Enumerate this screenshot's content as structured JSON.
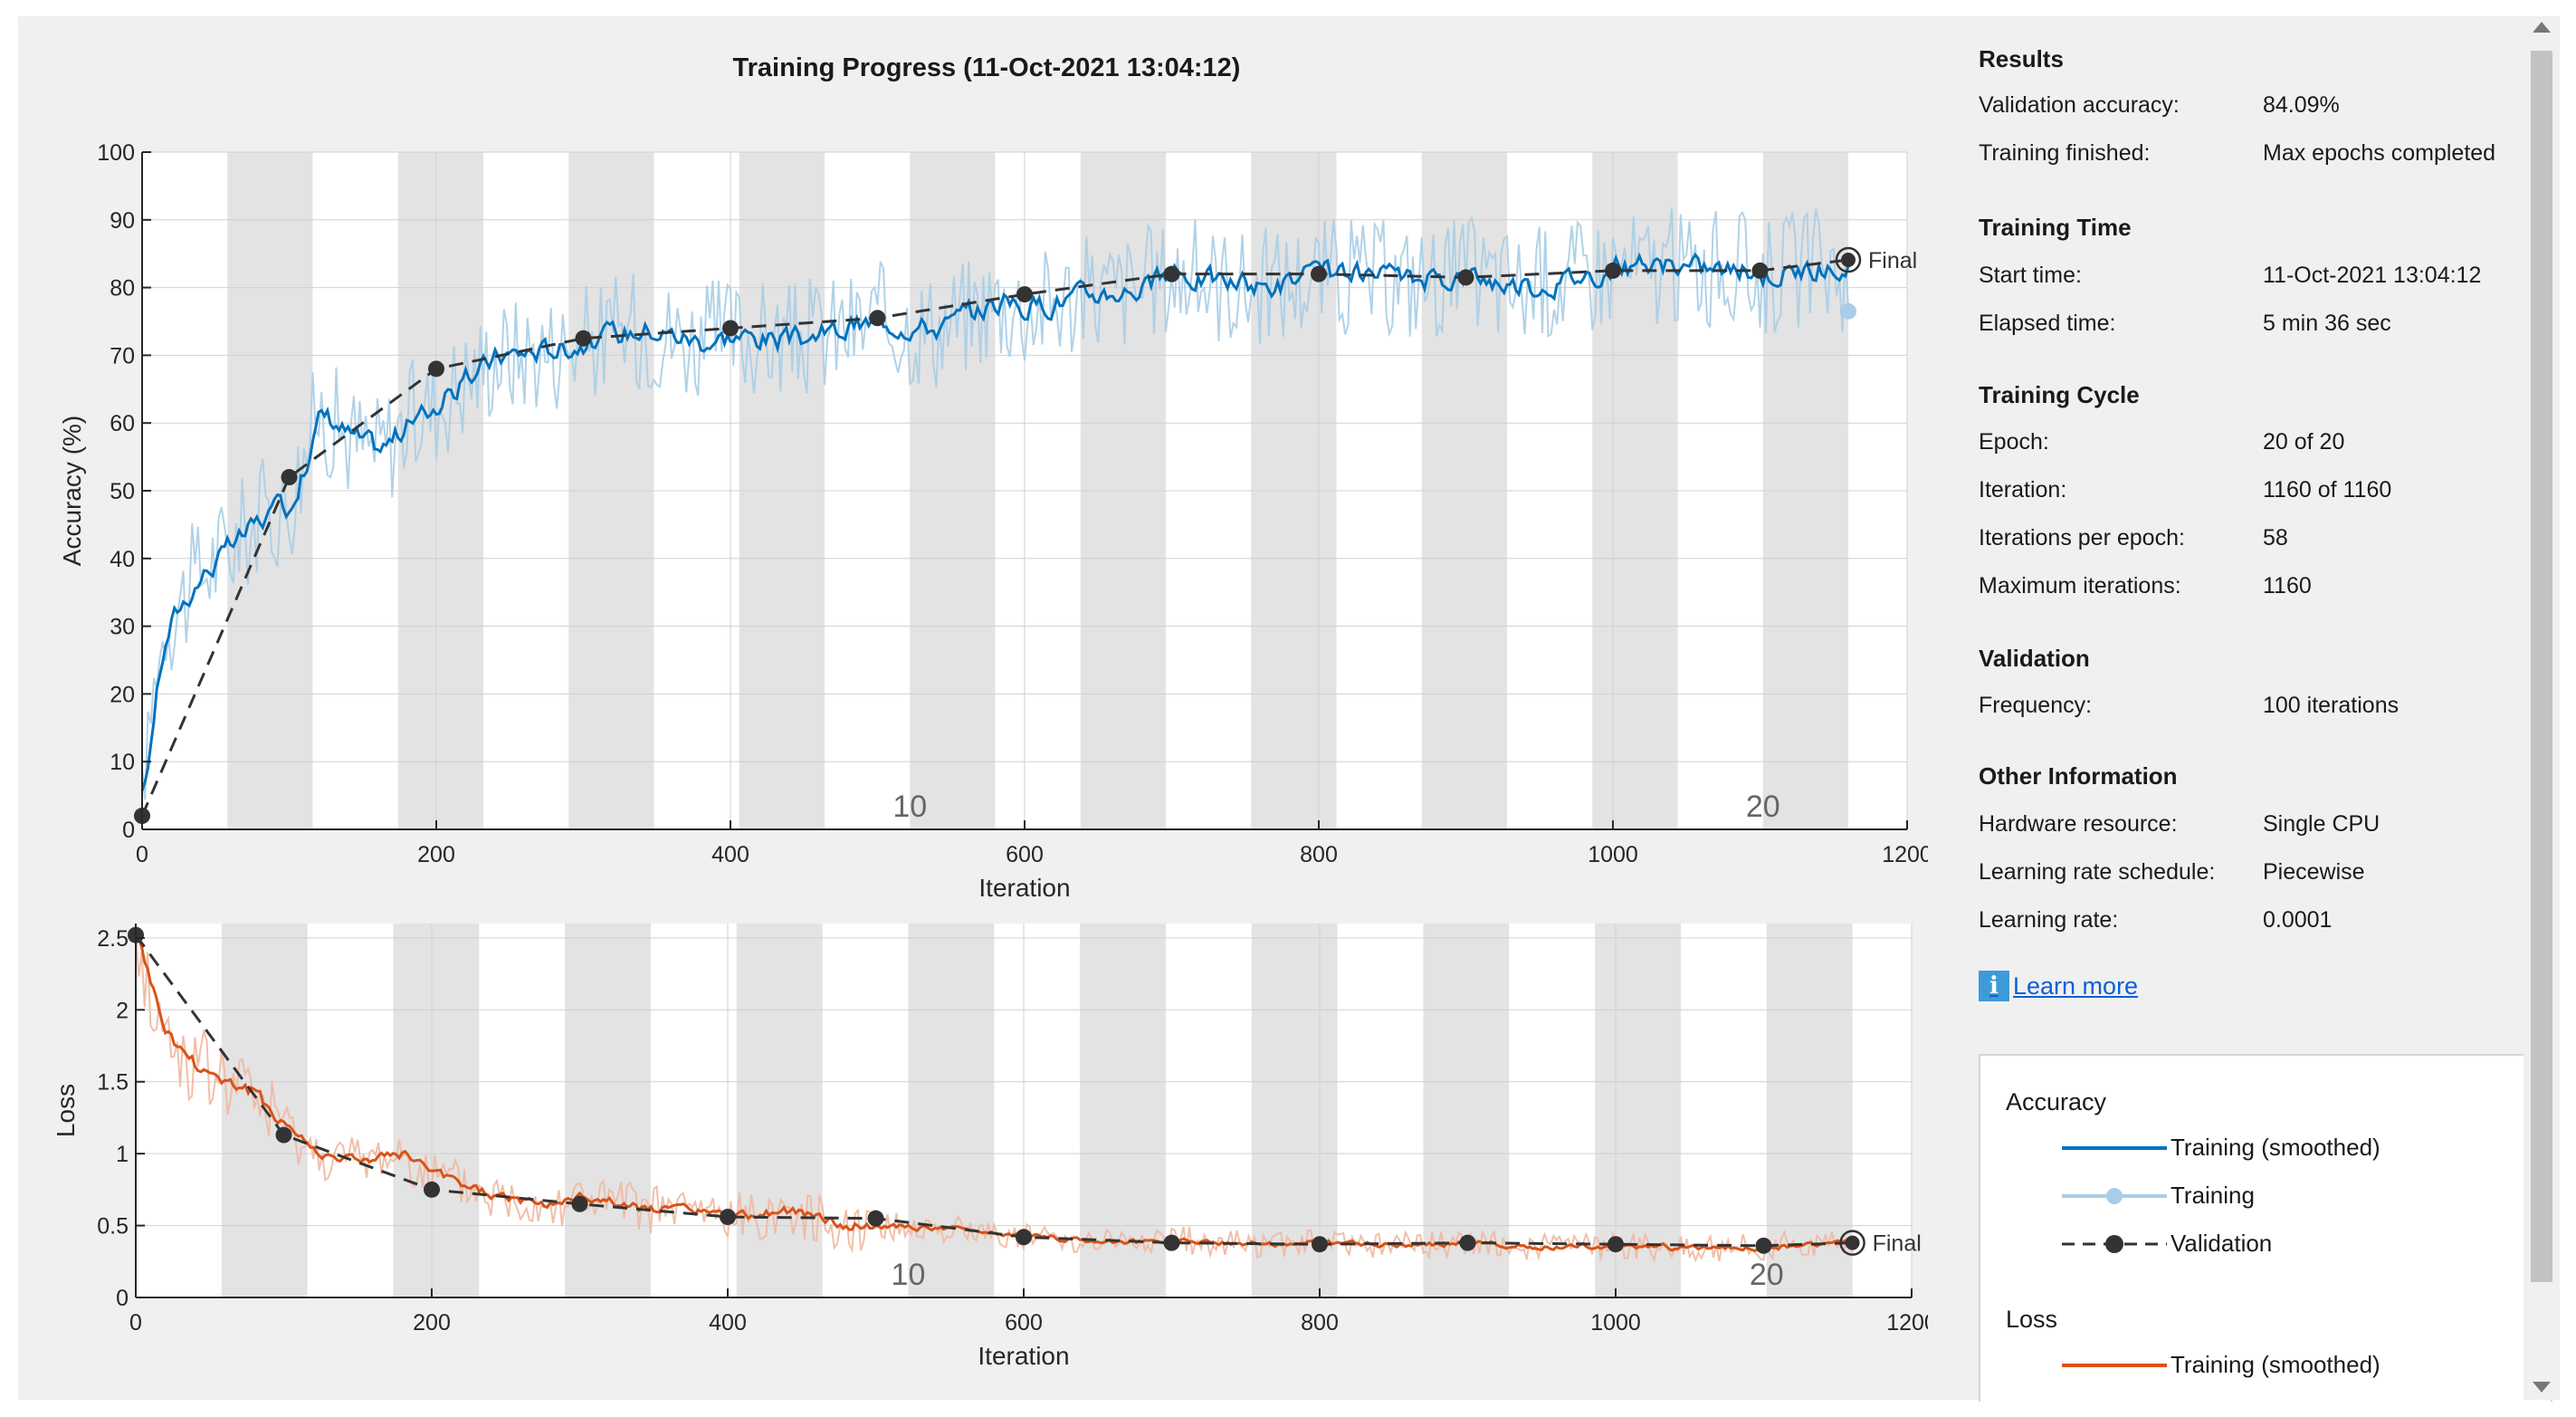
{
  "title": "Training Progress (11-Oct-2021 13:04:12)",
  "colors": {
    "train_smoothed": "#0072bd",
    "train_raw": "#a9cde6",
    "validation": "#333333",
    "loss_smoothed": "#d95319",
    "loss_raw": "#f0b8a0",
    "epoch_band": "#e3e3e3"
  },
  "chart_data": [
    {
      "type": "line",
      "name": "accuracy-plot",
      "ylabel": "Accuracy (%)",
      "xlabel": "Iteration",
      "xlim": [
        0,
        1200
      ],
      "ylim": [
        0,
        100
      ],
      "xticks": [
        0,
        200,
        400,
        600,
        800,
        1000,
        1200
      ],
      "yticks": [
        0,
        10,
        20,
        30,
        40,
        50,
        60,
        70,
        80,
        90,
        100
      ],
      "epoch_markers": [
        {
          "epoch": "10",
          "iteration": 522
        },
        {
          "epoch": "20",
          "iteration": 1102
        }
      ],
      "final_label": "Final",
      "series": [
        {
          "name": "Training (smoothed)",
          "x": [
            0,
            10,
            20,
            40,
            60,
            80,
            100,
            120,
            140,
            160,
            180,
            200,
            240,
            280,
            300,
            340,
            380,
            400,
            440,
            480,
            500,
            540,
            580,
            600,
            640,
            680,
            700,
            760,
            800,
            860,
            900,
            940,
            1000,
            1060,
            1100,
            1140,
            1160
          ],
          "y": [
            5,
            25,
            32,
            38,
            42,
            46,
            48,
            62,
            58,
            56,
            60,
            63,
            70,
            71,
            72,
            74,
            72,
            73,
            72,
            74,
            75,
            74,
            78,
            77,
            79,
            80,
            82,
            80,
            82,
            81,
            82,
            80,
            83,
            83,
            82,
            83,
            82
          ]
        },
        {
          "name": "Validation",
          "x": [
            0,
            100,
            200,
            300,
            400,
            500,
            600,
            700,
            800,
            900,
            1000,
            1100,
            1160
          ],
          "y": [
            2,
            52,
            68,
            72.5,
            74,
            75.5,
            79,
            82,
            82,
            81.5,
            82.5,
            82.5,
            84.09
          ]
        }
      ]
    },
    {
      "type": "line",
      "name": "loss-plot",
      "ylabel": "Loss",
      "xlabel": "Iteration",
      "xlim": [
        0,
        1200
      ],
      "ylim": [
        0,
        2.6
      ],
      "xticks": [
        0,
        200,
        400,
        600,
        800,
        1000,
        1200
      ],
      "yticks": [
        0,
        0.5,
        1,
        1.5,
        2,
        2.5
      ],
      "epoch_markers": [
        {
          "epoch": "10",
          "iteration": 522
        },
        {
          "epoch": "20",
          "iteration": 1102
        }
      ],
      "final_label": "Final",
      "series": [
        {
          "name": "Training (smoothed)",
          "x": [
            0,
            10,
            20,
            40,
            60,
            80,
            100,
            120,
            150,
            180,
            200,
            240,
            280,
            300,
            340,
            380,
            400,
            440,
            480,
            500,
            540,
            580,
            600,
            640,
            680,
            700,
            760,
            800,
            860,
            900,
            940,
            1000,
            1060,
            1100,
            1140,
            1160
          ],
          "y": [
            2.5,
            2.1,
            1.8,
            1.6,
            1.5,
            1.4,
            1.2,
            1.0,
            0.95,
            1.0,
            0.85,
            0.7,
            0.65,
            0.7,
            0.62,
            0.6,
            0.55,
            0.6,
            0.5,
            0.5,
            0.48,
            0.45,
            0.42,
            0.4,
            0.38,
            0.4,
            0.37,
            0.38,
            0.36,
            0.38,
            0.35,
            0.36,
            0.34,
            0.35,
            0.37,
            0.4
          ]
        },
        {
          "name": "Validation",
          "x": [
            0,
            100,
            200,
            300,
            400,
            500,
            600,
            700,
            800,
            900,
            1000,
            1100,
            1160
          ],
          "y": [
            2.52,
            1.13,
            0.75,
            0.65,
            0.56,
            0.55,
            0.42,
            0.38,
            0.37,
            0.38,
            0.37,
            0.36,
            0.38
          ]
        }
      ]
    }
  ],
  "results": {
    "heading": "Results",
    "rows": [
      {
        "label": "Validation accuracy:",
        "value": "84.09%"
      },
      {
        "label": "Training finished:",
        "value": "Max epochs completed"
      }
    ]
  },
  "training_time": {
    "heading": "Training Time",
    "rows": [
      {
        "label": "Start time:",
        "value": "11-Oct-2021 13:04:12"
      },
      {
        "label": "Elapsed time:",
        "value": "5 min 36 sec"
      }
    ]
  },
  "training_cycle": {
    "heading": "Training Cycle",
    "rows": [
      {
        "label": "Epoch:",
        "value": "20 of 20"
      },
      {
        "label": "Iteration:",
        "value": "1160 of 1160"
      },
      {
        "label": "Iterations per epoch:",
        "value": "58"
      },
      {
        "label": "Maximum iterations:",
        "value": "1160"
      }
    ]
  },
  "validation": {
    "heading": "Validation",
    "rows": [
      {
        "label": "Frequency:",
        "value": "100 iterations"
      }
    ]
  },
  "other_info": {
    "heading": "Other Information",
    "rows": [
      {
        "label": "Hardware resource:",
        "value": "Single CPU"
      },
      {
        "label": "Learning rate schedule:",
        "value": "Piecewise"
      },
      {
        "label": "Learning rate:",
        "value": "0.0001"
      }
    ]
  },
  "learn_more": {
    "icon": "info-icon",
    "label": "Learn more"
  },
  "legend": {
    "accuracy_title": "Accuracy",
    "accuracy_items": [
      "Training (smoothed)",
      "Training",
      "Validation"
    ],
    "loss_title": "Loss",
    "loss_items": [
      "Training (smoothed)"
    ]
  }
}
